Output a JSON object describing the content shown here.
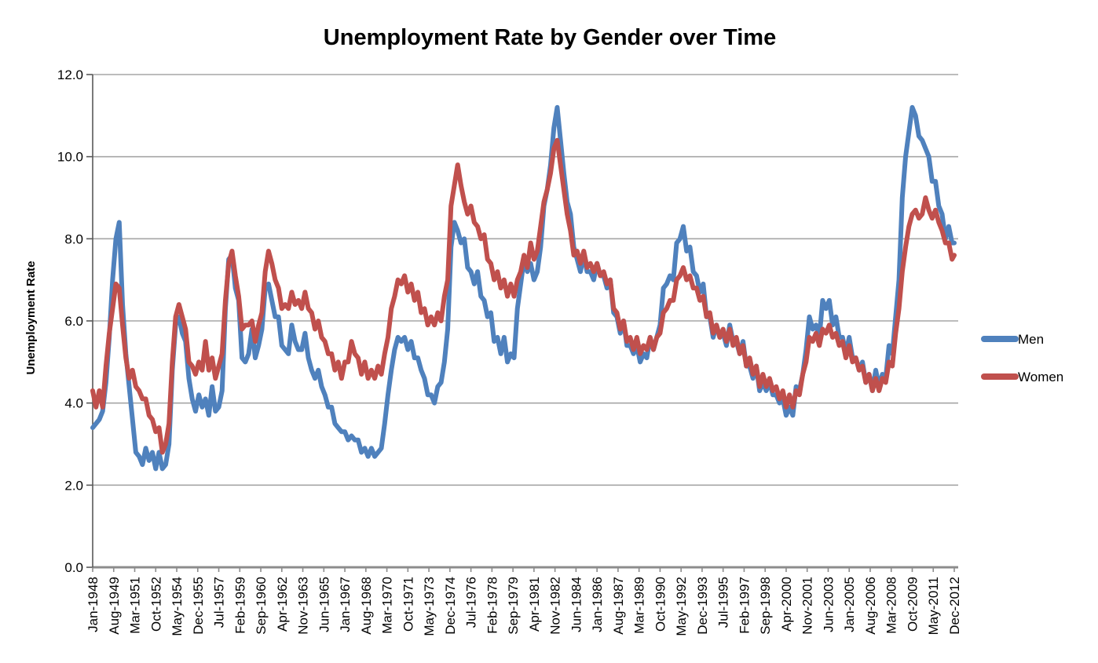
{
  "title": "Unemployment Rate by Gender over Time",
  "colors": {
    "men_line": "#4F81BD",
    "women_line": "#C0504D",
    "gridline": "#A6A6A6",
    "y_axis_line": "#595959",
    "x_axis_line": "#8C8C8C",
    "text": "#000000",
    "background": "#FFFFFF"
  },
  "legend": {
    "position": "right",
    "entries": [
      {
        "label": "Men",
        "color": "#4F81BD"
      },
      {
        "label": "Women",
        "color": "#C0504D"
      }
    ]
  },
  "chart_data": {
    "type": "line",
    "title": "Unemployment Rate by Gender over Time",
    "xlabel": "",
    "ylabel": "Unemployment Rate",
    "ylim": [
      0.0,
      12.0
    ],
    "ytick_step": 2.0,
    "ytick_labels": [
      "0.0",
      "2.0",
      "4.0",
      "6.0",
      "8.0",
      "10.0",
      "12.0"
    ],
    "grid": "horizontal",
    "legend_position": "right",
    "x_start": "Jan-1948",
    "x_end": "Dec-2012",
    "x_total_months": 780,
    "xtick_interval_months": 19,
    "xtick_labels": [
      "Jan-1948",
      "Aug-1949",
      "Mar-1951",
      "Oct-1952",
      "May-1954",
      "Dec-1955",
      "Jul-1957",
      "Feb-1959",
      "Sep-1960",
      "Apr-1962",
      "Nov-1963",
      "Jun-1965",
      "Jan-1967",
      "Aug-1968",
      "Mar-1970",
      "Oct-1971",
      "May-1973",
      "Dec-1974",
      "Jul-1976",
      "Feb-1978",
      "Sep-1979",
      "Apr-1981",
      "Nov-1982",
      "Jun-1984",
      "Jan-1986",
      "Aug-1987",
      "Mar-1989",
      "Oct-1990",
      "May-1992",
      "Dec-1993",
      "Jul-1995",
      "Feb-1997",
      "Sep-1998",
      "Apr-2000",
      "Nov-2001",
      "Jun-2003",
      "Jan-2005",
      "Aug-2006",
      "Mar-2008",
      "Oct-2009",
      "May-2011",
      "Dec-2012"
    ],
    "sampling_note": "values sampled quarterly (Jan/Apr/Jul/Oct) 1948-2012 plus final Dec-2012 point, read from plot",
    "series": [
      {
        "name": "Men",
        "color": "#4F81BD",
        "values": [
          3.4,
          3.5,
          3.6,
          3.8,
          4.5,
          5.6,
          7.0,
          8.0,
          8.4,
          6.4,
          5.2,
          4.4,
          3.6,
          2.8,
          2.7,
          2.5,
          2.9,
          2.6,
          2.8,
          2.4,
          2.8,
          2.4,
          2.5,
          3.0,
          4.8,
          5.9,
          6.1,
          5.7,
          5.5,
          4.6,
          4.1,
          3.8,
          4.2,
          3.9,
          4.1,
          3.7,
          4.4,
          3.8,
          3.9,
          4.3,
          6.3,
          7.5,
          7.6,
          6.8,
          6.5,
          5.1,
          5.0,
          5.2,
          5.8,
          5.1,
          5.4,
          5.8,
          6.8,
          6.9,
          6.5,
          6.1,
          6.1,
          5.4,
          5.3,
          5.2,
          5.9,
          5.5,
          5.3,
          5.3,
          5.7,
          5.1,
          4.8,
          4.6,
          4.8,
          4.4,
          4.2,
          3.9,
          3.9,
          3.5,
          3.4,
          3.3,
          3.3,
          3.1,
          3.2,
          3.1,
          3.1,
          2.8,
          2.9,
          2.7,
          2.9,
          2.7,
          2.8,
          2.9,
          3.5,
          4.2,
          4.8,
          5.3,
          5.6,
          5.5,
          5.6,
          5.3,
          5.5,
          5.1,
          5.1,
          4.8,
          4.6,
          4.2,
          4.2,
          4.0,
          4.4,
          4.5,
          5.0,
          5.8,
          7.8,
          8.4,
          8.2,
          7.9,
          8.0,
          7.3,
          7.2,
          6.9,
          7.2,
          6.6,
          6.5,
          6.1,
          6.2,
          5.5,
          5.6,
          5.2,
          5.6,
          5.0,
          5.2,
          5.1,
          6.3,
          6.9,
          7.5,
          7.2,
          7.4,
          7.0,
          7.2,
          7.8,
          8.8,
          9.2,
          9.8,
          10.7,
          11.2,
          10.4,
          9.6,
          8.9,
          8.6,
          7.8,
          7.5,
          7.2,
          7.6,
          7.2,
          7.2,
          7.0,
          7.4,
          7.1,
          7.1,
          6.8,
          7.0,
          6.2,
          6.1,
          5.7,
          6.0,
          5.4,
          5.4,
          5.2,
          5.4,
          5.0,
          5.2,
          5.1,
          5.6,
          5.3,
          5.6,
          5.9,
          6.8,
          6.9,
          7.1,
          7.0,
          7.9,
          8.0,
          8.3,
          7.7,
          7.8,
          7.2,
          7.1,
          6.7,
          6.9,
          6.1,
          6.1,
          5.6,
          5.9,
          5.6,
          5.7,
          5.4,
          5.9,
          5.5,
          5.5,
          5.2,
          5.5,
          4.9,
          4.9,
          4.6,
          4.9,
          4.3,
          4.5,
          4.3,
          4.5,
          4.2,
          4.2,
          4.0,
          4.1,
          3.7,
          3.9,
          3.7,
          4.4,
          4.3,
          4.7,
          5.3,
          6.1,
          5.8,
          5.9,
          5.6,
          6.5,
          6.3,
          6.5,
          5.9,
          6.1,
          5.6,
          5.6,
          5.2,
          5.6,
          5.1,
          5.1,
          4.8,
          5.0,
          4.5,
          4.7,
          4.3,
          4.8,
          4.4,
          4.7,
          4.6,
          5.4,
          5.2,
          6.1,
          7.0,
          9.0,
          10.0,
          10.6,
          11.2,
          11.0,
          10.5,
          10.4,
          10.2,
          10.0,
          9.4,
          9.4,
          8.8,
          8.6,
          8.0,
          8.3,
          7.9,
          7.9
        ]
      },
      {
        "name": "Women",
        "color": "#C0504D",
        "values": [
          4.3,
          3.9,
          4.3,
          3.9,
          4.9,
          5.7,
          6.3,
          6.9,
          6.8,
          5.9,
          5.1,
          4.6,
          4.8,
          4.4,
          4.3,
          4.1,
          4.1,
          3.7,
          3.6,
          3.3,
          3.4,
          2.8,
          3.0,
          3.5,
          5.0,
          6.1,
          6.4,
          6.1,
          5.8,
          5.0,
          4.9,
          4.7,
          5.0,
          4.8,
          5.5,
          4.8,
          5.1,
          4.6,
          4.9,
          5.2,
          6.5,
          7.4,
          7.7,
          7.1,
          6.6,
          5.8,
          5.9,
          5.9,
          6.0,
          5.5,
          5.9,
          6.2,
          7.2,
          7.7,
          7.4,
          7.0,
          6.8,
          6.3,
          6.4,
          6.3,
          6.7,
          6.4,
          6.5,
          6.3,
          6.7,
          6.3,
          6.2,
          5.8,
          6.0,
          5.6,
          5.5,
          5.2,
          5.2,
          4.8,
          5.0,
          4.6,
          5.0,
          5.0,
          5.5,
          5.2,
          5.1,
          4.7,
          5.0,
          4.6,
          4.8,
          4.6,
          4.9,
          4.7,
          5.2,
          5.6,
          6.3,
          6.6,
          7.0,
          6.9,
          7.1,
          6.7,
          6.9,
          6.5,
          6.7,
          6.2,
          6.3,
          5.9,
          6.1,
          5.9,
          6.2,
          6.0,
          6.6,
          7.0,
          8.8,
          9.3,
          9.8,
          9.3,
          8.9,
          8.6,
          8.8,
          8.4,
          8.3,
          8.0,
          8.1,
          7.5,
          7.4,
          7.0,
          7.2,
          6.8,
          7.0,
          6.6,
          6.9,
          6.6,
          7.0,
          7.2,
          7.6,
          7.3,
          7.9,
          7.5,
          7.7,
          8.3,
          8.9,
          9.2,
          9.6,
          10.2,
          10.4,
          9.8,
          9.2,
          8.6,
          8.2,
          7.6,
          7.7,
          7.4,
          7.7,
          7.3,
          7.4,
          7.2,
          7.4,
          7.1,
          7.2,
          6.9,
          7.0,
          6.3,
          6.2,
          5.8,
          6.0,
          5.5,
          5.6,
          5.3,
          5.6,
          5.2,
          5.4,
          5.3,
          5.6,
          5.3,
          5.6,
          5.7,
          6.2,
          6.3,
          6.5,
          6.5,
          7.0,
          7.1,
          7.3,
          7.0,
          7.1,
          6.8,
          6.8,
          6.5,
          6.6,
          6.1,
          6.2,
          5.7,
          5.9,
          5.6,
          5.8,
          5.5,
          5.8,
          5.4,
          5.6,
          5.2,
          5.4,
          4.9,
          5.1,
          4.7,
          4.9,
          4.4,
          4.7,
          4.4,
          4.6,
          4.3,
          4.4,
          4.1,
          4.3,
          3.9,
          4.2,
          3.9,
          4.3,
          4.2,
          4.7,
          5.0,
          5.6,
          5.5,
          5.7,
          5.4,
          5.8,
          5.7,
          5.9,
          5.6,
          5.7,
          5.4,
          5.5,
          5.1,
          5.4,
          5.0,
          5.1,
          4.8,
          4.9,
          4.5,
          4.7,
          4.3,
          4.6,
          4.3,
          4.6,
          4.5,
          5.0,
          4.9,
          5.7,
          6.3,
          7.2,
          7.8,
          8.3,
          8.6,
          8.7,
          8.5,
          8.6,
          9.0,
          8.7,
          8.5,
          8.7,
          8.4,
          8.2,
          7.9,
          7.9,
          7.5,
          7.6
        ]
      }
    ]
  }
}
